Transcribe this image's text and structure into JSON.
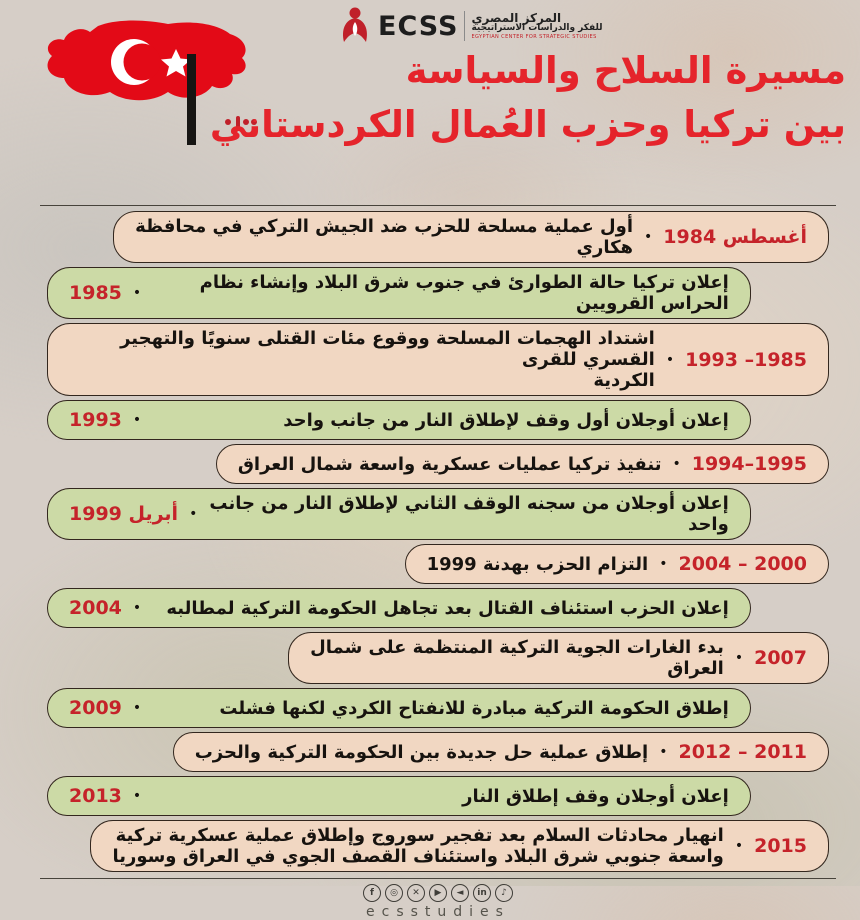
{
  "header": {
    "logo": {
      "acronym": "ECSS",
      "org_ar_line1": "المركز المصري",
      "org_ar_line2": "للفكر والدراسات الاستراتيجية",
      "org_en": "EGYPTIAN CENTER FOR STRATEGIC STUDIES",
      "emblem_color": "#c0202a"
    },
    "title_line1": "مسيرة السلاح والسياسة",
    "title_line2": "بين تركيا وحزب العُمال الكردستاني",
    "title_color": "#e5242b",
    "flag": {
      "name": "turkey-map-flag",
      "red": "#e30a17"
    }
  },
  "timeline": {
    "bullet": "•",
    "year_color": "#c5232a",
    "pink_row_color": "#f1d7c2",
    "green_row_color": "#ccdaa6",
    "rows": [
      {
        "year": "أغسطس 1984",
        "text": "أول عملية مسلحة للحزب ضد الجيش التركي في محافظة\nهكاري"
      },
      {
        "year": "1985",
        "text": "إعلان تركيا حالة الطوارئ في جنوب شرق البلاد وإنشاء نظام الحراس القرويين"
      },
      {
        "year": "1985– 1993",
        "text": "اشتداد الهجمات المسلحة ووقوع مئات القتلى سنويًا والتهجير القسري للقرى\nالكردية"
      },
      {
        "year": "1993",
        "text": "إعلان أوجلان أول وقف لإطلاق النار من جانب واحد"
      },
      {
        "year": "1995–1994",
        "text": "تنفيذ تركيا عمليات عسكرية واسعة شمال العراق"
      },
      {
        "year": "أبريل 1999",
        "text": "إعلان أوجلان من سجنه الوقف الثاني لإطلاق النار من جانب واحد"
      },
      {
        "year": "2000 – 2004",
        "text": "التزام الحزب بهدنة 1999"
      },
      {
        "year": "2004",
        "text": "إعلان الحزب استئناف القتال بعد تجاهل الحكومة التركية لمطالبه"
      },
      {
        "year": "2007",
        "text": "بدء الغارات الجوية التركية المنتظمة على شمال\nالعراق"
      },
      {
        "year": "2009",
        "text": "إطلاق الحكومة التركية مبادرة للانفتاح الكردي لكنها فشلت"
      },
      {
        "year": "2011 – 2012",
        "text": "إطلاق عملية حل جديدة بين الحكومة التركية والحزب"
      },
      {
        "year": "2013",
        "text": "إعلان أوجلان وقف إطلاق النار"
      },
      {
        "year": "2015",
        "text": "انهيار محادثات السلام بعد تفجير سوروج وإطلاق عملية عسكرية تركية\nواسعة جنوبي شرق البلاد واستئناف القصف الجوي في العراق وسوريا"
      }
    ]
  },
  "footer": {
    "icons": [
      {
        "name": "facebook-icon",
        "glyph": "f"
      },
      {
        "name": "instagram-icon",
        "glyph": "◎"
      },
      {
        "name": "x-twitter-icon",
        "glyph": "✕"
      },
      {
        "name": "youtube-icon",
        "glyph": "▶"
      },
      {
        "name": "telegram-icon",
        "glyph": "◄"
      },
      {
        "name": "linkedin-icon",
        "glyph": "in"
      },
      {
        "name": "tiktok-icon",
        "glyph": "♪"
      }
    ],
    "handle": "ecsstudies"
  }
}
